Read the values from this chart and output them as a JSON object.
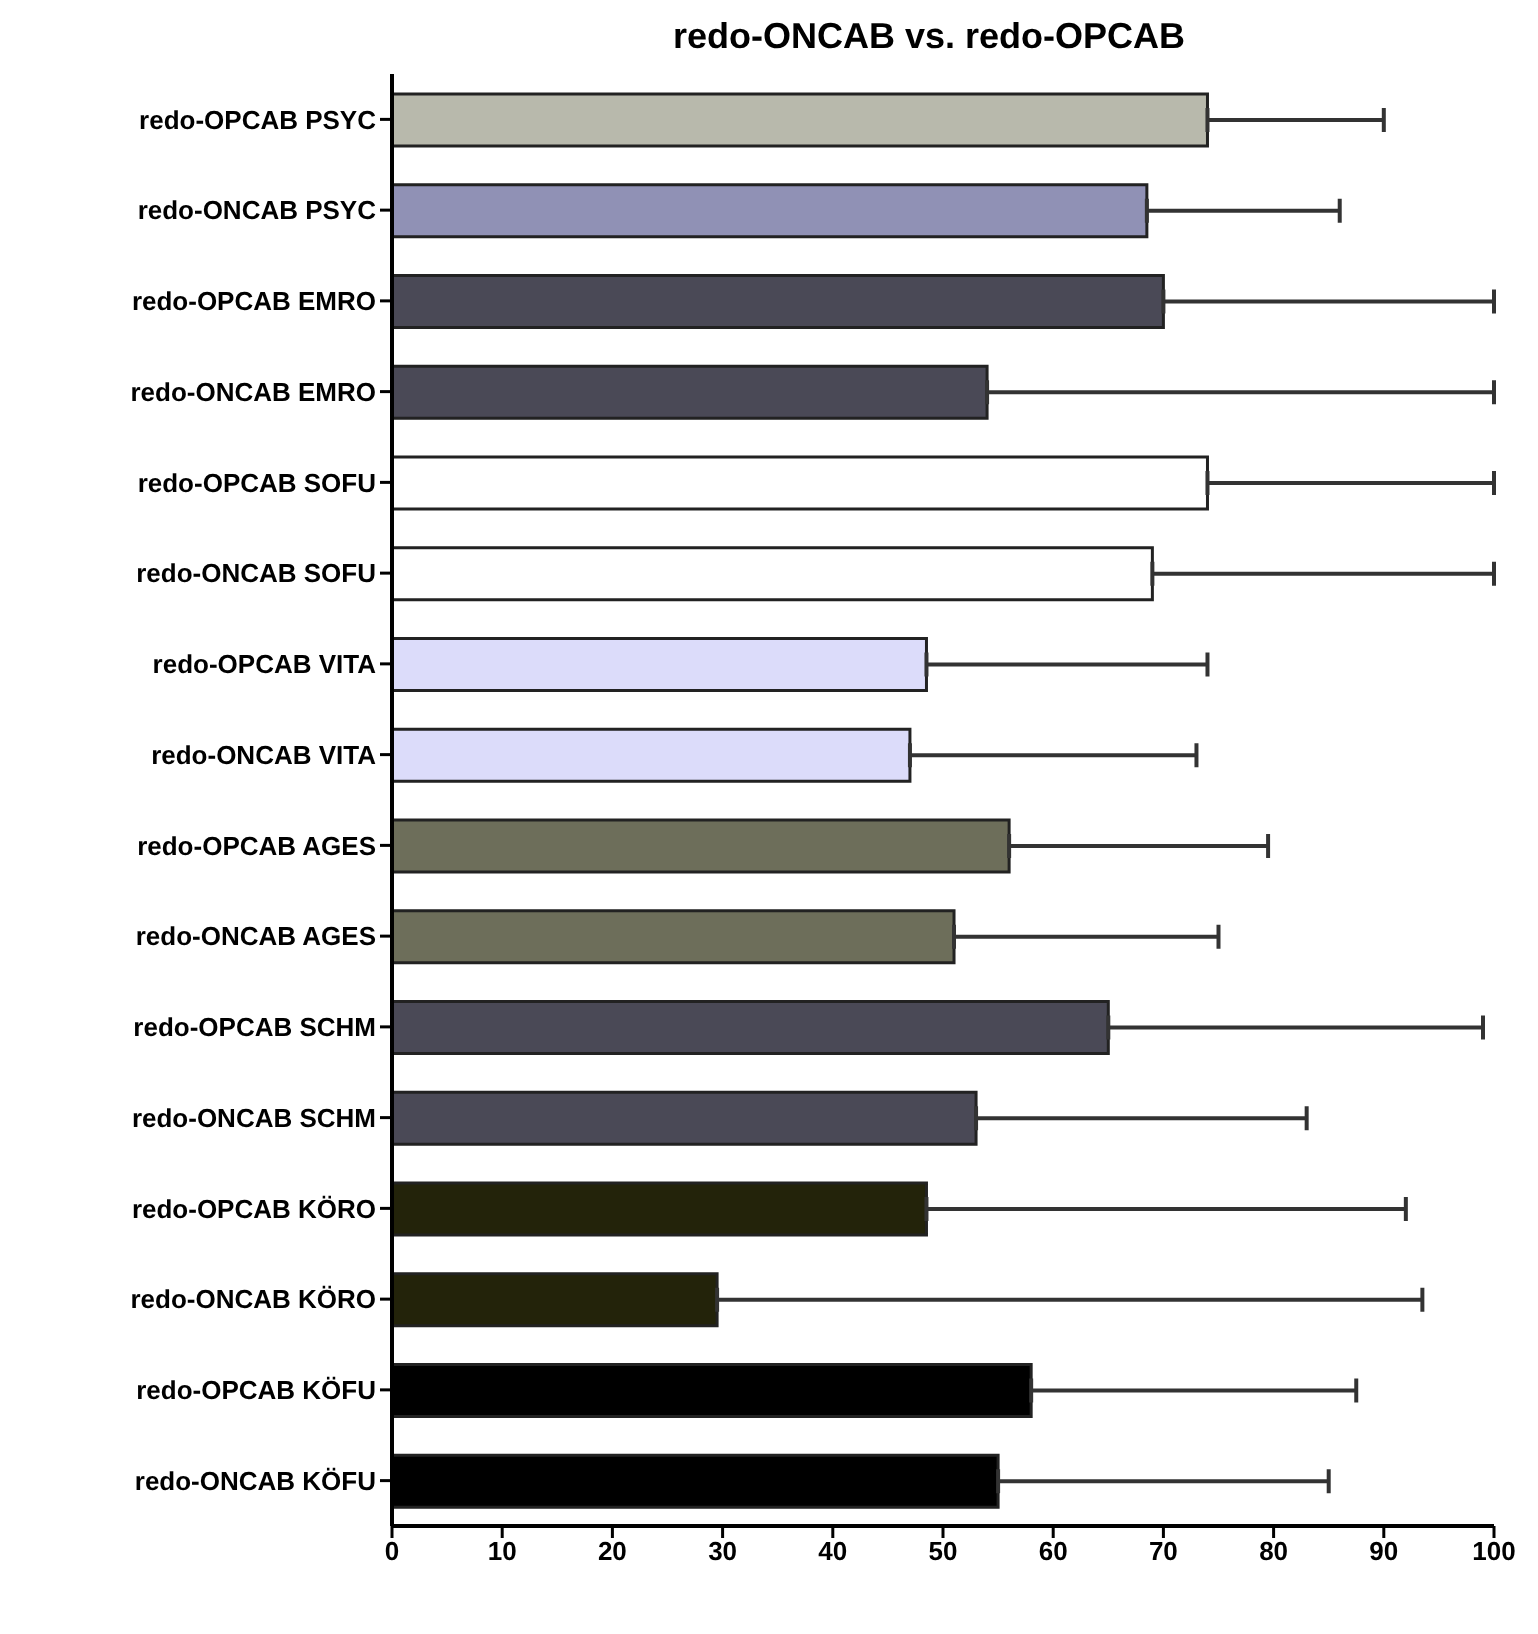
{
  "chart_data": {
    "type": "bar",
    "orientation": "horizontal",
    "title": "redo-ONCAB vs. redo-OPCAB",
    "categories": [
      "redo-OPCAB PSYC",
      "redo-ONCAB PSYC",
      "redo-OPCAB EMRO",
      "redo-ONCAB EMRO",
      "redo-OPCAB SOFU",
      "redo-ONCAB SOFU",
      "redo-OPCAB VITA",
      "redo-ONCAB VITA",
      "redo-OPCAB AGES",
      "redo-ONCAB AGES",
      "redo-OPCAB SCHM",
      "redo-ONCAB SCHM",
      "redo-OPCAB KÖRO",
      "redo-ONCAB KÖRO",
      "redo-OPCAB KÖFU",
      "redo-ONCAB KÖFU"
    ],
    "values": [
      74,
      68.5,
      70,
      54,
      74,
      69,
      48.5,
      47,
      56,
      51,
      65,
      53,
      48.5,
      29.5,
      58,
      55
    ],
    "errors": [
      [
        74,
        90
      ],
      [
        68.5,
        86
      ],
      [
        70,
        100
      ],
      [
        54,
        100
      ],
      [
        74,
        100
      ],
      [
        69,
        100
      ],
      [
        48.5,
        74
      ],
      [
        47,
        73
      ],
      [
        56,
        79.5
      ],
      [
        51,
        75
      ],
      [
        65,
        99
      ],
      [
        53,
        83
      ],
      [
        48.5,
        92
      ],
      [
        29.5,
        93.5
      ],
      [
        58,
        87.5
      ],
      [
        55,
        85
      ]
    ],
    "colors": [
      "#b8b9ac",
      "#9091b5",
      "#4a4956",
      "#4a4956",
      "#ffffff",
      "#ffffff",
      "#dcdcfa",
      "#dcdcfa",
      "#6d6e5a",
      "#6d6e5a",
      "#4a4956",
      "#4a4956",
      "#23230a",
      "#23230a",
      "#000000",
      "#000000"
    ],
    "xlim": [
      0,
      100
    ],
    "xticks": [
      0,
      10,
      20,
      30,
      40,
      50,
      60,
      70,
      80,
      90,
      100
    ],
    "grid": false
  }
}
